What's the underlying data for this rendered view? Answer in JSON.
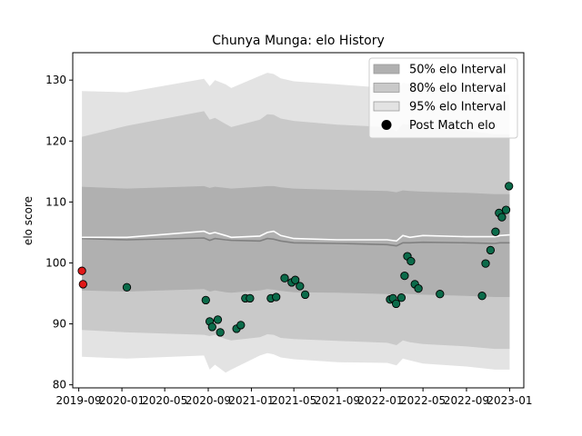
{
  "chart_data": {
    "type": "scatter",
    "title": "Chunya Munga: elo History",
    "xlabel": "",
    "ylabel": "elo score",
    "xlim": [
      "2019-08-15",
      "2023-02-10"
    ],
    "ylim": [
      79.5,
      134.5
    ],
    "x_ticks": [
      "2019-09-01",
      "2020-01-01",
      "2020-05-01",
      "2020-09-01",
      "2021-01-01",
      "2021-05-01",
      "2021-09-01",
      "2022-01-01",
      "2022-05-01",
      "2022-09-01",
      "2023-01-01"
    ],
    "x_tick_labels": [
      "2019-09",
      "2020-01",
      "2020-05",
      "2020-09",
      "2021-01",
      "2021-05",
      "2021-09",
      "2022-01",
      "2022-05",
      "2022-09",
      "2023-01"
    ],
    "y_ticks": [
      80,
      90,
      100,
      110,
      120,
      130
    ],
    "grid": false,
    "legend_position": "top-right",
    "legend": [
      "50% elo Interval",
      "80% elo Interval",
      "95% elo Interval",
      "Post Match elo"
    ],
    "colors": {
      "band50": "#b0b0b0",
      "band80": "#c9c9c9",
      "band95": "#e3e3e3",
      "point_green": "#0b6b4a",
      "point_red": "#e01818",
      "mean_line": "#808080",
      "median_line": "#ffffff"
    },
    "bands": {
      "dates": [
        "2019-09-10",
        "2020-01-15",
        "2020-08-20",
        "2020-09-05",
        "2020-09-20",
        "2020-10-20",
        "2020-11-05",
        "2021-01-25",
        "2021-02-15",
        "2021-03-05",
        "2021-03-25",
        "2021-05-01",
        "2021-09-01",
        "2022-01-20",
        "2022-02-15",
        "2022-03-05",
        "2022-03-25",
        "2022-05-01",
        "2022-09-01",
        "2022-11-20",
        "2022-12-05",
        "2023-01-01"
      ],
      "band95_upper": [
        128.2,
        128.0,
        130.2,
        129.0,
        130.0,
        129.3,
        128.7,
        130.7,
        131.2,
        131.0,
        130.3,
        129.8,
        129.3,
        128.7,
        128.2,
        129.6,
        129.3,
        128.8,
        128.2,
        127.6,
        127.6,
        127.6
      ],
      "band80_upper": [
        120.7,
        122.5,
        124.9,
        123.5,
        123.8,
        122.8,
        122.3,
        123.5,
        124.4,
        124.3,
        123.7,
        123.3,
        122.7,
        122.3,
        121.6,
        122.8,
        122.6,
        122.3,
        121.7,
        121.1,
        121.1,
        121.1
      ],
      "band50_upper": [
        112.5,
        112.2,
        112.6,
        112.3,
        112.5,
        112.3,
        112.2,
        112.5,
        112.6,
        112.6,
        112.4,
        112.2,
        112.0,
        111.8,
        111.6,
        111.9,
        111.8,
        111.7,
        111.5,
        111.3,
        111.3,
        111.3
      ],
      "band50_lower": [
        95.5,
        95.3,
        95.7,
        95.3,
        95.5,
        95.2,
        95.1,
        95.5,
        95.7,
        95.6,
        95.4,
        95.2,
        95.1,
        94.9,
        94.7,
        95.0,
        94.9,
        94.8,
        94.6,
        94.4,
        94.4,
        94.4
      ],
      "band80_lower": [
        89.0,
        88.6,
        88.2,
        88.0,
        88.2,
        87.5,
        87.3,
        87.8,
        88.3,
        88.2,
        87.7,
        87.5,
        87.2,
        86.9,
        86.5,
        87.3,
        87.0,
        86.7,
        86.3,
        85.9,
        85.9,
        85.9
      ],
      "band95_lower": [
        84.6,
        84.3,
        84.8,
        82.5,
        83.3,
        82.0,
        82.5,
        84.8,
        85.2,
        85.0,
        84.5,
        84.2,
        83.7,
        83.6,
        83.2,
        84.3,
        84.0,
        83.5,
        83.0,
        82.5,
        82.5,
        82.5
      ],
      "mean": [
        104.0,
        103.8,
        104.1,
        103.7,
        104.0,
        103.8,
        103.7,
        103.6,
        104.0,
        103.9,
        103.6,
        103.3,
        103.2,
        103.0,
        102.8,
        103.3,
        103.3,
        103.4,
        103.3,
        103.2,
        103.3,
        103.3
      ],
      "median": [
        104.2,
        104.2,
        105.2,
        104.8,
        105.0,
        104.5,
        104.2,
        104.4,
        105.0,
        105.2,
        104.5,
        104.0,
        103.8,
        103.8,
        103.6,
        104.5,
        104.2,
        104.5,
        104.3,
        104.3,
        104.5,
        104.6
      ]
    },
    "points": [
      {
        "x": "2019-09-10",
        "y": 98.7,
        "color": "red"
      },
      {
        "x": "2019-09-13",
        "y": 96.5,
        "color": "red"
      },
      {
        "x": "2020-01-15",
        "y": 96.0,
        "color": "green"
      },
      {
        "x": "2020-08-25",
        "y": 93.9,
        "color": "green"
      },
      {
        "x": "2020-09-05",
        "y": 90.4,
        "color": "green"
      },
      {
        "x": "2020-09-12",
        "y": 89.5,
        "color": "green"
      },
      {
        "x": "2020-09-28",
        "y": 90.7,
        "color": "green"
      },
      {
        "x": "2020-10-05",
        "y": 88.6,
        "color": "green"
      },
      {
        "x": "2020-11-20",
        "y": 89.2,
        "color": "green"
      },
      {
        "x": "2020-12-02",
        "y": 89.8,
        "color": "green"
      },
      {
        "x": "2020-12-15",
        "y": 94.2,
        "color": "green"
      },
      {
        "x": "2020-12-28",
        "y": 94.2,
        "color": "green"
      },
      {
        "x": "2021-02-25",
        "y": 94.2,
        "color": "green"
      },
      {
        "x": "2021-03-12",
        "y": 94.4,
        "color": "green"
      },
      {
        "x": "2021-04-05",
        "y": 97.5,
        "color": "green"
      },
      {
        "x": "2021-04-25",
        "y": 96.8,
        "color": "green"
      },
      {
        "x": "2021-05-05",
        "y": 97.2,
        "color": "green"
      },
      {
        "x": "2021-05-18",
        "y": 96.2,
        "color": "green"
      },
      {
        "x": "2021-06-02",
        "y": 94.8,
        "color": "green"
      },
      {
        "x": "2022-01-28",
        "y": 94.0,
        "color": "green"
      },
      {
        "x": "2022-02-05",
        "y": 94.2,
        "color": "green"
      },
      {
        "x": "2022-02-14",
        "y": 93.3,
        "color": "green"
      },
      {
        "x": "2022-03-01",
        "y": 94.3,
        "color": "green"
      },
      {
        "x": "2022-03-10",
        "y": 97.9,
        "color": "green"
      },
      {
        "x": "2022-03-18",
        "y": 101.1,
        "color": "green"
      },
      {
        "x": "2022-03-28",
        "y": 100.3,
        "color": "green"
      },
      {
        "x": "2022-04-08",
        "y": 96.5,
        "color": "green"
      },
      {
        "x": "2022-04-18",
        "y": 95.8,
        "color": "green"
      },
      {
        "x": "2022-06-18",
        "y": 94.9,
        "color": "green"
      },
      {
        "x": "2022-10-15",
        "y": 94.6,
        "color": "green"
      },
      {
        "x": "2022-10-25",
        "y": 99.9,
        "color": "green"
      },
      {
        "x": "2022-11-08",
        "y": 102.1,
        "color": "green"
      },
      {
        "x": "2022-11-22",
        "y": 105.1,
        "color": "green"
      },
      {
        "x": "2022-12-02",
        "y": 108.2,
        "color": "green"
      },
      {
        "x": "2022-12-10",
        "y": 107.5,
        "color": "green"
      },
      {
        "x": "2022-12-22",
        "y": 108.7,
        "color": "green"
      },
      {
        "x": "2022-12-30",
        "y": 112.6,
        "color": "green"
      }
    ]
  }
}
